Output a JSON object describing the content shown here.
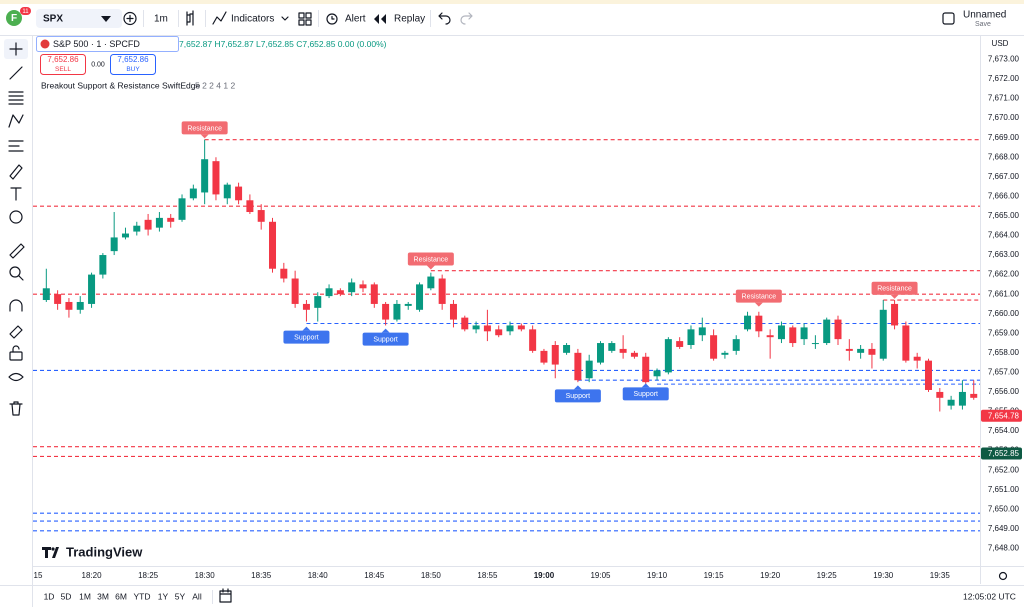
{
  "toolbar": {
    "avatar": "F",
    "badge": "11",
    "symbol": "SPX",
    "interval": "1m",
    "indicators": "Indicators",
    "alert": "Alert",
    "replay": "Replay",
    "layout_name": "Unnamed",
    "save": "Save"
  },
  "legend": {
    "symbol": "S&P 500 · 1 · SPCFD",
    "ohlc": "7,652.87 H7,652.87 L7,652.85 C7,652.85 0.00 (0.00%)",
    "sell_price": "7,652.86",
    "sell": "SELL",
    "spread": "0.00",
    "buy_price": "7,652.86",
    "buy": "BUY",
    "indicator": "Breakout Support & Resistance SwiftEdge",
    "indicator_params": "5 2 2 4 1 2"
  },
  "currency": "USD",
  "watermark": "TradingView",
  "bottom_bar": {
    "ranges": [
      "1D",
      "5D",
      "1M",
      "3M",
      "6M",
      "YTD",
      "1Y",
      "5Y",
      "All"
    ],
    "clock": "12:05:02 UTC"
  },
  "chart_data": {
    "type": "candlestick",
    "up_color": "#089981",
    "down_color": "#f23645",
    "x": [
      "18:16",
      "18:17",
      "18:18",
      "18:19",
      "18:20",
      "18:21",
      "18:22",
      "18:23",
      "18:24",
      "18:25",
      "18:26",
      "18:27",
      "18:28",
      "18:29",
      "18:30",
      "18:31",
      "18:32",
      "18:33",
      "18:34",
      "18:35",
      "18:36",
      "18:37",
      "18:38",
      "18:39",
      "18:40",
      "18:41",
      "18:42",
      "18:43",
      "18:44",
      "18:45",
      "18:46",
      "18:47",
      "18:48",
      "18:49",
      "18:50",
      "18:51",
      "18:52",
      "18:53",
      "18:54",
      "18:55",
      "18:56",
      "18:57",
      "18:58",
      "18:59",
      "19:00",
      "19:01",
      "19:02",
      "19:03",
      "19:04",
      "19:05",
      "19:06",
      "19:07",
      "19:08",
      "19:09",
      "19:10",
      "19:11",
      "19:12",
      "19:13",
      "19:14",
      "19:15",
      "19:16",
      "19:17",
      "19:18",
      "19:19",
      "19:20",
      "19:21",
      "19:22",
      "19:23",
      "19:24",
      "19:25",
      "19:26",
      "19:27",
      "19:28",
      "19:29",
      "19:30",
      "19:31",
      "19:32",
      "19:33",
      "19:34",
      "19:35",
      "19:36",
      "19:37",
      "19:38",
      "19:39"
    ],
    "open": [
      7660.7,
      7661.0,
      7660.6,
      7660.2,
      7660.5,
      7662.0,
      7663.2,
      7663.9,
      7664.2,
      7664.8,
      7664.4,
      7664.9,
      7664.8,
      7665.9,
      7666.2,
      7667.8,
      7665.9,
      7666.5,
      7665.8,
      7665.3,
      7664.7,
      7662.3,
      7661.8,
      7660.5,
      7660.3,
      7660.9,
      7661.2,
      7661.1,
      7661.5,
      7661.5,
      7660.5,
      7659.7,
      7660.4,
      7660.2,
      7661.3,
      7661.8,
      7660.5,
      7659.8,
      7659.2,
      7659.4,
      7659.2,
      7659.1,
      7659.4,
      7659.2,
      7658.1,
      7658.4,
      7658.0,
      7658.0,
      7656.7,
      7657.5,
      7658.1,
      7658.2,
      7658.0,
      7657.8,
      7656.8,
      7657.0,
      7658.6,
      7658.4,
      7658.9,
      7658.9,
      7657.9,
      7658.1,
      7659.2,
      7659.9,
      7658.9,
      7658.7,
      7659.3,
      7658.7,
      7658.5,
      7658.5,
      7659.7,
      7658.2,
      7658.0,
      7658.2,
      7657.7,
      7660.5,
      7659.4,
      7657.8,
      7657.6,
      7656.0,
      7655.3,
      7655.3,
      7655.9,
      7655.8
    ],
    "high": [
      7662.3,
      7661.2,
      7660.8,
      7660.9,
      7662.1,
      7663.1,
      7665.2,
      7664.4,
      7664.7,
      7665.1,
      7665.2,
      7665.1,
      7666.1,
      7666.6,
      7668.9,
      7668.0,
      7666.7,
      7666.7,
      7666.1,
      7665.6,
      7664.9,
      7662.6,
      7662.2,
      7660.7,
      7661.1,
      7661.5,
      7661.3,
      7661.8,
      7661.7,
      7661.6,
      7660.6,
      7660.7,
      7660.6,
      7661.6,
      7662.1,
      7662.0,
      7660.7,
      7659.9,
      7659.6,
      7660.2,
      7659.4,
      7659.6,
      7659.5,
      7659.4,
      7658.2,
      7658.6,
      7658.5,
      7658.2,
      7657.9,
      7658.6,
      7658.6,
      7658.9,
      7658.1,
      7658.0,
      7657.2,
      7658.8,
      7658.8,
      7659.4,
      7659.8,
      7659.2,
      7658.1,
      7658.9,
      7660.1,
      7660.1,
      7659.2,
      7659.6,
      7659.4,
      7659.5,
      7658.9,
      7659.8,
      7659.9,
      7658.7,
      7658.4,
      7658.5,
      7660.7,
      7660.7,
      7659.6,
      7658.0,
      7657.7,
      7656.2,
      7655.8,
      7656.6,
      7656.6,
      7656.0
    ],
    "low": [
      7660.6,
      7660.2,
      7659.8,
      7660.0,
      7660.3,
      7661.8,
      7663.0,
      7663.8,
      7664.0,
      7664.0,
      7664.2,
      7664.4,
      7664.7,
      7665.8,
      7665.6,
      7665.8,
      7665.6,
      7665.6,
      7665.1,
      7664.3,
      7662.1,
      7661.6,
      7660.3,
      7659.6,
      7659.6,
      7660.8,
      7660.9,
      7660.9,
      7661.1,
      7660.3,
      7659.4,
      7659.6,
      7660.2,
      7660.1,
      7661.2,
      7660.2,
      7659.3,
      7659.1,
      7659.0,
      7658.6,
      7658.8,
      7658.9,
      7659.1,
      7658.0,
      7657.4,
      7656.7,
      7657.9,
      7656.5,
      7656.5,
      7657.4,
      7658.0,
      7657.7,
      7657.7,
      7656.3,
      7656.6,
      7656.9,
      7658.2,
      7658.2,
      7658.6,
      7657.6,
      7657.7,
      7657.9,
      7659.1,
      7658.8,
      7657.7,
      7658.5,
      7658.3,
      7658.4,
      7658.2,
      7658.4,
      7658.4,
      7657.6,
      7657.7,
      7657.2,
      7657.6,
      7659.2,
      7657.5,
      7657.2,
      7656.0,
      7655.0,
      7655.1,
      7655.1,
      7655.6,
      7654.5
    ],
    "close": [
      7661.3,
      7660.5,
      7660.2,
      7660.6,
      7662.0,
      7663.0,
      7663.9,
      7664.1,
      7664.5,
      7664.3,
      7664.9,
      7664.7,
      7665.9,
      7666.4,
      7667.9,
      7666.1,
      7666.6,
      7665.8,
      7665.2,
      7664.7,
      7662.3,
      7661.8,
      7660.5,
      7660.2,
      7660.9,
      7661.3,
      7661.0,
      7661.6,
      7661.3,
      7660.5,
      7659.7,
      7660.5,
      7660.5,
      7661.5,
      7661.9,
      7660.5,
      7659.7,
      7659.2,
      7659.4,
      7659.1,
      7658.9,
      7659.4,
      7659.2,
      7658.1,
      7657.5,
      7657.4,
      7658.4,
      7656.6,
      7657.6,
      7658.5,
      7658.5,
      7658.0,
      7657.8,
      7656.5,
      7657.1,
      7658.7,
      7658.3,
      7659.2,
      7659.3,
      7657.7,
      7658.0,
      7658.7,
      7659.9,
      7659.1,
      7658.8,
      7659.4,
      7658.5,
      7659.3,
      7658.5,
      7659.7,
      7658.7,
      7658.1,
      7658.2,
      7657.9,
      7660.2,
      7659.4,
      7657.6,
      7657.6,
      7656.1,
      7655.7,
      7655.6,
      7656.0,
      7655.7,
      7654.8
    ],
    "ylim": [
      7647.1,
      7674.2
    ],
    "yticks": [
      {
        "value": 7673,
        "label": "7,673.00"
      },
      {
        "value": 7672,
        "label": "7,672.00"
      },
      {
        "value": 7671,
        "label": "7,671.00"
      },
      {
        "value": 7670,
        "label": "7,670.00"
      },
      {
        "value": 7669,
        "label": "7,669.00"
      },
      {
        "value": 7668,
        "label": "7,668.00"
      },
      {
        "value": 7667,
        "label": "7,667.00"
      },
      {
        "value": 7666,
        "label": "7,666.00"
      },
      {
        "value": 7665,
        "label": "7,665.00"
      },
      {
        "value": 7664,
        "label": "7,664.00"
      },
      {
        "value": 7663,
        "label": "7,663.00"
      },
      {
        "value": 7662,
        "label": "7,662.00"
      },
      {
        "value": 7661,
        "label": "7,661.00"
      },
      {
        "value": 7660,
        "label": "7,660.00"
      },
      {
        "value": 7659,
        "label": "7,659.00"
      },
      {
        "value": 7658,
        "label": "7,658.00"
      },
      {
        "value": 7657,
        "label": "7,657.00"
      },
      {
        "value": 7656,
        "label": "7,656.00"
      },
      {
        "value": 7655,
        "label": "7,655.00"
      },
      {
        "value": 7654,
        "label": "7,654.00"
      },
      {
        "value": 7653,
        "label": "7,653.00"
      },
      {
        "value": 7652,
        "label": "7,652.00"
      },
      {
        "value": 7651,
        "label": "7,651.00"
      },
      {
        "value": 7650,
        "label": "7,650.00"
      },
      {
        "value": 7649,
        "label": "7,649.00"
      },
      {
        "value": 7648,
        "label": "7,648.00"
      }
    ],
    "xticks": [
      {
        "value": "18:15",
        "label": "15"
      },
      "18:20",
      "18:25",
      "18:30",
      "18:35",
      "18:40",
      "18:45",
      "18:50",
      "18:55",
      "19:00",
      "19:05",
      "19:10",
      "19:15",
      "19:20",
      "19:25",
      "19:30",
      "19:35"
    ],
    "grid": false,
    "levels": [
      {
        "value": 7668.9,
        "color": "#f23645",
        "start": "18:30"
      },
      {
        "value": 7665.5,
        "color": "#f23645"
      },
      {
        "value": 7662.2,
        "color": "#f23645",
        "start": "18:50"
      },
      {
        "value": 7661.0,
        "color": "#f23645"
      },
      {
        "value": 7660.7,
        "color": "#f23645",
        "start": "19:30"
      },
      {
        "value": 7653.2,
        "color": "#f23645"
      },
      {
        "value": 7652.7,
        "color": "#f23645"
      },
      {
        "value": 7659.5,
        "color": "#2962ff",
        "start": "18:39"
      },
      {
        "value": 7657.1,
        "color": "#2962ff"
      },
      {
        "value": 7656.6,
        "color": "#2962ff",
        "start": "19:03"
      },
      {
        "value": 7656.4,
        "color": "#2962ff",
        "start": "19:10"
      },
      {
        "value": 7649.8,
        "color": "#2962ff"
      },
      {
        "value": 7649.4,
        "color": "#2962ff"
      },
      {
        "value": 7648.9,
        "color": "#2962ff"
      }
    ],
    "annotations": [
      {
        "text": "Resistance",
        "x": "18:30",
        "y": 7669.5,
        "color": "#f26c72",
        "pointer": "down"
      },
      {
        "text": "Resistance",
        "x": "18:50",
        "y": 7662.8,
        "color": "#f26c72",
        "pointer": "down"
      },
      {
        "text": "Resistance",
        "x": "19:19",
        "y": 7660.9,
        "color": "#f26c72",
        "pointer": "down"
      },
      {
        "text": "Resistance",
        "x": "19:31",
        "y": 7661.3,
        "color": "#f26c72",
        "pointer": "down"
      },
      {
        "text": "Support",
        "x": "18:39",
        "y": 7658.8,
        "color": "#3d74ee",
        "pointer": "up"
      },
      {
        "text": "Support",
        "x": "18:46",
        "y": 7658.7,
        "color": "#3d74ee",
        "pointer": "up"
      },
      {
        "text": "Support",
        "x": "19:03",
        "y": 7655.8,
        "color": "#3d74ee",
        "pointer": "up"
      },
      {
        "text": "Support",
        "x": "19:09",
        "y": 7655.9,
        "color": "#3d74ee",
        "pointer": "up"
      }
    ],
    "price_labels": [
      {
        "value": 7654.78,
        "label": "7,654.78",
        "color": "#f23645"
      },
      {
        "value": 7652.85,
        "label": "7,652.85",
        "color": "#0e5a44"
      }
    ]
  }
}
